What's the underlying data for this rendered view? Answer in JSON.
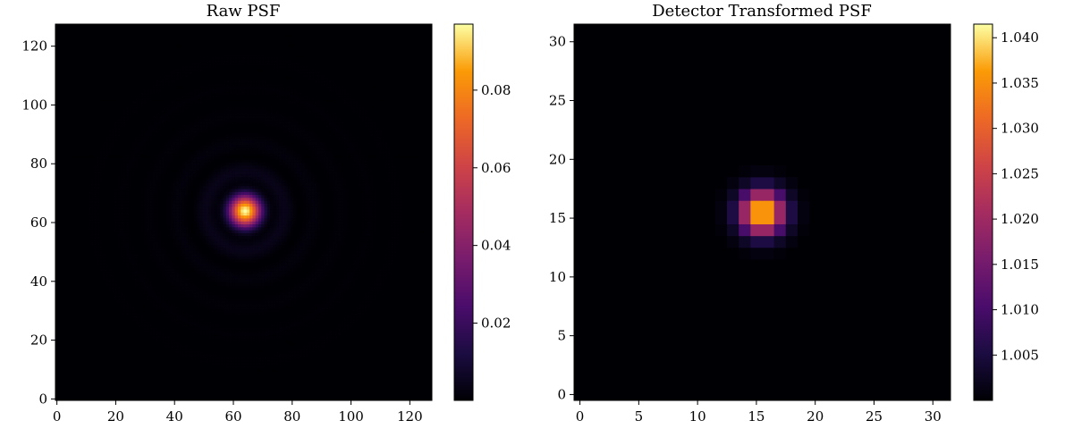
{
  "chart_data": [
    {
      "type": "heatmap",
      "title": "Raw PSF",
      "xlabel": "",
      "ylabel": "",
      "grid_size": 128,
      "xlim": [
        0,
        127
      ],
      "ylim": [
        0,
        127
      ],
      "x_ticks": [
        0,
        20,
        40,
        60,
        80,
        100,
        120
      ],
      "y_ticks": [
        0,
        20,
        40,
        60,
        80,
        100,
        120
      ],
      "peak_center": [
        64,
        64
      ],
      "peak_value": 0.097,
      "colormap": "inferno",
      "colorbar": {
        "range": [
          0.0001,
          0.097
        ],
        "ticks": [
          "0.02",
          "0.04",
          "0.06",
          "0.08"
        ]
      }
    },
    {
      "type": "heatmap",
      "title": "Detector Transformed PSF",
      "xlabel": "",
      "ylabel": "",
      "grid_size": 32,
      "xlim": [
        0,
        31
      ],
      "ylim": [
        0,
        31
      ],
      "x_ticks": [
        0,
        5,
        10,
        15,
        20,
        25,
        30
      ],
      "y_ticks": [
        0,
        5,
        10,
        15,
        20,
        25,
        30
      ],
      "peak_center": [
        16,
        16
      ],
      "peak_value": 1.0415,
      "background_value": 1.0,
      "colormap": "inferno",
      "colorbar": {
        "range": [
          1.0,
          1.0415
        ],
        "ticks": [
          "1.005",
          "1.010",
          "1.015",
          "1.020",
          "1.025",
          "1.030",
          "1.035",
          "1.040"
        ]
      }
    }
  ]
}
